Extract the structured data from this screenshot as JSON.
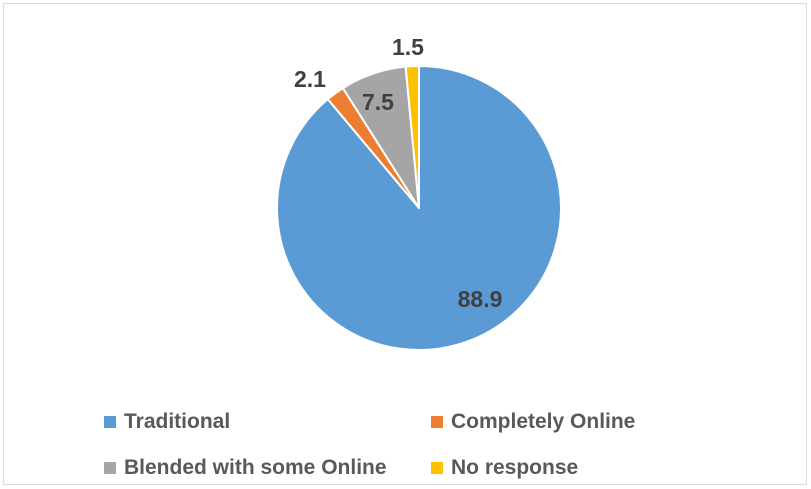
{
  "chart_data": {
    "type": "pie",
    "title": "",
    "categories": [
      "Traditional",
      "Completely Online",
      "Blended with some Online",
      "No response"
    ],
    "values": [
      88.9,
      2.1,
      7.5,
      1.5
    ],
    "value_labels": [
      "88.9",
      "2.1",
      "7.5",
      "1.5"
    ],
    "colors": [
      "#5b9bd5",
      "#ed7d31",
      "#a5a5a5",
      "#ffc000"
    ],
    "start_angle_deg": 0,
    "direction": "clockwise",
    "legend": {
      "position": "bottom",
      "items": [
        {
          "label": "Traditional",
          "color": "#5b9bd5"
        },
        {
          "label": "Completely Online",
          "color": "#ed7d31"
        },
        {
          "label": "Blended with some Online",
          "color": "#a5a5a5"
        },
        {
          "label": "No response",
          "color": "#ffc000"
        }
      ]
    }
  }
}
